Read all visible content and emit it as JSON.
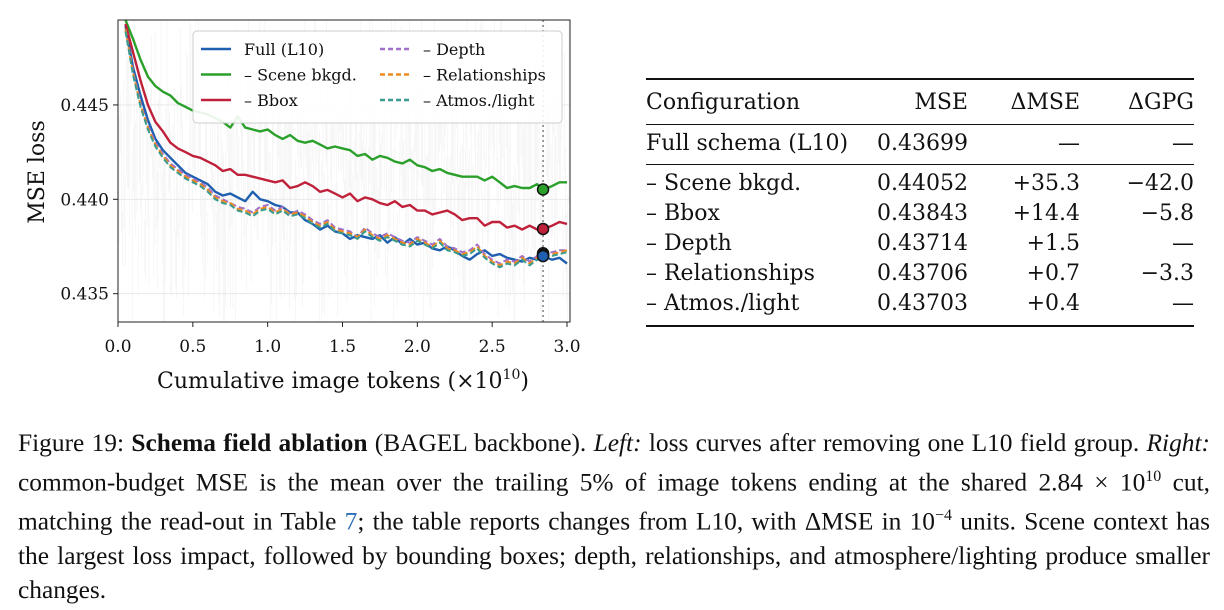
{
  "chart_data": {
    "type": "line",
    "title": "",
    "xlabel": "Cumulative image tokens (×10",
    "xlabel_sup": "10",
    "xlabel_end": ")",
    "ylabel": "MSE loss",
    "xlim": [
      0.0,
      3.02
    ],
    "ylim": [
      0.4335,
      0.4495
    ],
    "xticks": [
      0.0,
      0.5,
      1.0,
      1.5,
      2.0,
      2.5,
      3.0
    ],
    "xtick_labels": [
      "0.0",
      "0.5",
      "1.0",
      "1.5",
      "2.0",
      "2.5",
      "3.0"
    ],
    "yticks": [
      0.435,
      0.44,
      0.445
    ],
    "ytick_labels": [
      "0.435",
      "0.440",
      "0.445"
    ],
    "cutoff_x": 2.84,
    "legend_position": "top-right",
    "series": [
      {
        "name": "Full (L10)",
        "color": "#1f5fb0",
        "style": "solid",
        "x": [
          0.05,
          0.1,
          0.15,
          0.2,
          0.25,
          0.3,
          0.35,
          0.4,
          0.45,
          0.5,
          0.55,
          0.6,
          0.65,
          0.7,
          0.75,
          0.8,
          0.85,
          0.9,
          0.95,
          1.0,
          1.05,
          1.1,
          1.15,
          1.2,
          1.25,
          1.3,
          1.35,
          1.4,
          1.45,
          1.5,
          1.55,
          1.6,
          1.65,
          1.7,
          1.75,
          1.8,
          1.85,
          1.9,
          1.95,
          2.0,
          2.05,
          2.1,
          2.15,
          2.2,
          2.25,
          2.3,
          2.35,
          2.4,
          2.45,
          2.5,
          2.55,
          2.6,
          2.65,
          2.7,
          2.75,
          2.8,
          2.84,
          2.9,
          2.95,
          3.0
        ],
        "y": [
          0.4492,
          0.447,
          0.4455,
          0.4442,
          0.4432,
          0.4426,
          0.4422,
          0.4418,
          0.4414,
          0.4412,
          0.441,
          0.4408,
          0.4404,
          0.4402,
          0.4403,
          0.4401,
          0.4399,
          0.4404,
          0.44,
          0.4399,
          0.4397,
          0.4396,
          0.4393,
          0.4393,
          0.4389,
          0.4387,
          0.4384,
          0.4386,
          0.4383,
          0.4382,
          0.4379,
          0.4381,
          0.438,
          0.4379,
          0.4381,
          0.4377,
          0.438,
          0.4376,
          0.4379,
          0.4376,
          0.4377,
          0.4374,
          0.4373,
          0.4375,
          0.4373,
          0.437,
          0.4368,
          0.4371,
          0.4373,
          0.437,
          0.4371,
          0.4369,
          0.4368,
          0.4367,
          0.4369,
          0.4368,
          0.43699,
          0.4368,
          0.4369,
          0.4366
        ]
      },
      {
        "name": "– Scene bkgd.",
        "color": "#2aa02b",
        "style": "solid",
        "x": [
          0.05,
          0.1,
          0.15,
          0.2,
          0.25,
          0.3,
          0.35,
          0.4,
          0.45,
          0.5,
          0.55,
          0.6,
          0.65,
          0.7,
          0.75,
          0.8,
          0.85,
          0.9,
          0.95,
          1.0,
          1.05,
          1.1,
          1.15,
          1.2,
          1.25,
          1.3,
          1.35,
          1.4,
          1.45,
          1.5,
          1.55,
          1.6,
          1.65,
          1.7,
          1.75,
          1.8,
          1.85,
          1.9,
          1.95,
          2.0,
          2.05,
          2.1,
          2.15,
          2.2,
          2.25,
          2.3,
          2.35,
          2.4,
          2.45,
          2.5,
          2.55,
          2.6,
          2.65,
          2.7,
          2.75,
          2.8,
          2.84,
          2.9,
          2.95,
          3.0
        ],
        "y": [
          0.4495,
          0.4485,
          0.4474,
          0.4465,
          0.446,
          0.4457,
          0.4455,
          0.4451,
          0.4449,
          0.4447,
          0.4446,
          0.4445,
          0.4443,
          0.4441,
          0.4438,
          0.4444,
          0.4438,
          0.4437,
          0.4436,
          0.4437,
          0.4434,
          0.4432,
          0.4434,
          0.4431,
          0.443,
          0.4431,
          0.4429,
          0.4427,
          0.4428,
          0.4427,
          0.4426,
          0.4423,
          0.4424,
          0.4421,
          0.4423,
          0.4422,
          0.442,
          0.4419,
          0.4421,
          0.4418,
          0.4417,
          0.4415,
          0.4416,
          0.4414,
          0.4413,
          0.4412,
          0.4412,
          0.4412,
          0.441,
          0.4412,
          0.4409,
          0.4406,
          0.4407,
          0.4406,
          0.4406,
          0.4408,
          0.44052,
          0.4407,
          0.4409,
          0.4409
        ]
      },
      {
        "name": "– Bbox",
        "color": "#c0213a",
        "style": "solid",
        "x": [
          0.05,
          0.1,
          0.15,
          0.2,
          0.25,
          0.3,
          0.35,
          0.4,
          0.45,
          0.5,
          0.55,
          0.6,
          0.65,
          0.7,
          0.75,
          0.8,
          0.85,
          0.9,
          0.95,
          1.0,
          1.05,
          1.1,
          1.15,
          1.2,
          1.25,
          1.3,
          1.35,
          1.4,
          1.45,
          1.5,
          1.55,
          1.6,
          1.65,
          1.7,
          1.75,
          1.8,
          1.85,
          1.9,
          1.95,
          2.0,
          2.05,
          2.1,
          2.15,
          2.2,
          2.25,
          2.3,
          2.35,
          2.4,
          2.45,
          2.5,
          2.55,
          2.6,
          2.65,
          2.7,
          2.75,
          2.8,
          2.84,
          2.9,
          2.95,
          3.0
        ],
        "y": [
          0.4493,
          0.4478,
          0.4463,
          0.445,
          0.4441,
          0.4436,
          0.443,
          0.4427,
          0.4425,
          0.4423,
          0.4422,
          0.442,
          0.4418,
          0.4415,
          0.4416,
          0.4413,
          0.4413,
          0.4412,
          0.4411,
          0.441,
          0.4409,
          0.441,
          0.4406,
          0.4407,
          0.4409,
          0.4407,
          0.4404,
          0.4405,
          0.4403,
          0.4401,
          0.4403,
          0.4399,
          0.4401,
          0.44,
          0.4398,
          0.4397,
          0.4399,
          0.4396,
          0.4397,
          0.4394,
          0.4394,
          0.4392,
          0.4393,
          0.4394,
          0.4392,
          0.4389,
          0.439,
          0.439,
          0.4386,
          0.4388,
          0.4388,
          0.4385,
          0.4386,
          0.4384,
          0.4386,
          0.4384,
          0.43843,
          0.4386,
          0.4388,
          0.4387
        ]
      },
      {
        "name": "– Depth",
        "color": "#a270c9",
        "style": "dashed",
        "x": [
          0.05,
          0.1,
          0.15,
          0.2,
          0.25,
          0.3,
          0.35,
          0.4,
          0.45,
          0.5,
          0.55,
          0.6,
          0.65,
          0.7,
          0.75,
          0.8,
          0.85,
          0.9,
          0.95,
          1.0,
          1.05,
          1.1,
          1.15,
          1.2,
          1.25,
          1.3,
          1.35,
          1.4,
          1.45,
          1.5,
          1.55,
          1.6,
          1.65,
          1.7,
          1.75,
          1.8,
          1.85,
          1.9,
          1.95,
          2.0,
          2.05,
          2.1,
          2.15,
          2.2,
          2.25,
          2.3,
          2.35,
          2.4,
          2.45,
          2.5,
          2.55,
          2.6,
          2.65,
          2.7,
          2.75,
          2.8,
          2.84,
          2.9,
          2.95,
          3.0
        ],
        "y": [
          0.449,
          0.4468,
          0.4451,
          0.4439,
          0.443,
          0.4424,
          0.4419,
          0.4416,
          0.4413,
          0.4411,
          0.4409,
          0.4406,
          0.4402,
          0.44,
          0.4398,
          0.4396,
          0.4395,
          0.4393,
          0.4396,
          0.4397,
          0.4394,
          0.4396,
          0.4392,
          0.4394,
          0.4392,
          0.4389,
          0.4387,
          0.4389,
          0.4385,
          0.4384,
          0.4383,
          0.438,
          0.4385,
          0.4382,
          0.438,
          0.4382,
          0.438,
          0.4378,
          0.4377,
          0.438,
          0.4378,
          0.4376,
          0.4379,
          0.4375,
          0.4374,
          0.4372,
          0.4373,
          0.4376,
          0.4371,
          0.4368,
          0.4366,
          0.4368,
          0.4367,
          0.437,
          0.4367,
          0.437,
          0.43714,
          0.4372,
          0.4373,
          0.4373
        ]
      },
      {
        "name": "– Relationships",
        "color": "#f08a1c",
        "style": "dashed",
        "x": [
          0.05,
          0.1,
          0.15,
          0.2,
          0.25,
          0.3,
          0.35,
          0.4,
          0.45,
          0.5,
          0.55,
          0.6,
          0.65,
          0.7,
          0.75,
          0.8,
          0.85,
          0.9,
          0.95,
          1.0,
          1.05,
          1.1,
          1.15,
          1.2,
          1.25,
          1.3,
          1.35,
          1.4,
          1.45,
          1.5,
          1.55,
          1.6,
          1.65,
          1.7,
          1.75,
          1.8,
          1.85,
          1.9,
          1.95,
          2.0,
          2.05,
          2.1,
          2.15,
          2.2,
          2.25,
          2.3,
          2.35,
          2.4,
          2.45,
          2.5,
          2.55,
          2.6,
          2.65,
          2.7,
          2.75,
          2.8,
          2.84,
          2.9,
          2.95,
          3.0
        ],
        "y": [
          0.449,
          0.4467,
          0.445,
          0.4438,
          0.4429,
          0.4423,
          0.4418,
          0.4415,
          0.4412,
          0.441,
          0.4408,
          0.4405,
          0.4401,
          0.4399,
          0.4398,
          0.4395,
          0.4394,
          0.4392,
          0.4395,
          0.4396,
          0.4393,
          0.4395,
          0.4392,
          0.4393,
          0.4391,
          0.4388,
          0.4386,
          0.4388,
          0.4384,
          0.4383,
          0.4382,
          0.438,
          0.4384,
          0.4381,
          0.4379,
          0.4381,
          0.4379,
          0.4377,
          0.4376,
          0.4379,
          0.4377,
          0.4375,
          0.4378,
          0.4374,
          0.4373,
          0.4371,
          0.4372,
          0.4375,
          0.437,
          0.4367,
          0.4365,
          0.4367,
          0.4366,
          0.4369,
          0.4366,
          0.4369,
          0.43706,
          0.4371,
          0.4372,
          0.4373
        ]
      },
      {
        "name": "– Atmos./light",
        "color": "#3a9c8f",
        "style": "dashed",
        "x": [
          0.05,
          0.1,
          0.15,
          0.2,
          0.25,
          0.3,
          0.35,
          0.4,
          0.45,
          0.5,
          0.55,
          0.6,
          0.65,
          0.7,
          0.75,
          0.8,
          0.85,
          0.9,
          0.95,
          1.0,
          1.05,
          1.1,
          1.15,
          1.2,
          1.25,
          1.3,
          1.35,
          1.4,
          1.45,
          1.5,
          1.55,
          1.6,
          1.65,
          1.7,
          1.75,
          1.8,
          1.85,
          1.9,
          1.95,
          2.0,
          2.05,
          2.1,
          2.15,
          2.2,
          2.25,
          2.3,
          2.35,
          2.4,
          2.45,
          2.5,
          2.55,
          2.6,
          2.65,
          2.7,
          2.75,
          2.8,
          2.84,
          2.9,
          2.95,
          3.0
        ],
        "y": [
          0.4489,
          0.4466,
          0.4449,
          0.4437,
          0.4428,
          0.4422,
          0.4417,
          0.4414,
          0.4411,
          0.4409,
          0.4407,
          0.4404,
          0.44,
          0.4398,
          0.4397,
          0.4394,
          0.4393,
          0.4391,
          0.4394,
          0.4395,
          0.4392,
          0.4394,
          0.4391,
          0.4392,
          0.439,
          0.4387,
          0.4385,
          0.4387,
          0.4383,
          0.4382,
          0.4381,
          0.4379,
          0.4383,
          0.438,
          0.4378,
          0.438,
          0.4378,
          0.4376,
          0.4375,
          0.4378,
          0.4376,
          0.4374,
          0.4377,
          0.4373,
          0.4372,
          0.437,
          0.4371,
          0.4374,
          0.4369,
          0.4366,
          0.4364,
          0.4366,
          0.4365,
          0.4368,
          0.4365,
          0.4368,
          0.43703,
          0.437,
          0.4371,
          0.4372
        ]
      }
    ],
    "markers": [
      {
        "x": 2.84,
        "y": 0.44052,
        "color": "#2aa02b"
      },
      {
        "x": 2.84,
        "y": 0.43843,
        "color": "#c0213a"
      },
      {
        "x": 2.84,
        "y": 0.43714,
        "color": "#a270c9"
      },
      {
        "x": 2.84,
        "y": 0.43706,
        "color": "#f08a1c"
      },
      {
        "x": 2.84,
        "y": 0.43703,
        "color": "#3a9c8f"
      },
      {
        "x": 2.84,
        "y": 0.43699,
        "color": "#1f5fb0"
      }
    ]
  },
  "table": {
    "headers": [
      "Configuration",
      "MSE",
      "ΔMSE",
      "ΔGPG"
    ],
    "baseline": [
      "Full schema (L10)",
      "0.43699",
      "—",
      "—"
    ],
    "rows": [
      [
        "– Scene bkgd.",
        "0.44052",
        "+35.3",
        "−42.0"
      ],
      [
        "– Bbox",
        "0.43843",
        "+14.4",
        "−5.8"
      ],
      [
        "– Depth",
        "0.43714",
        "+1.5",
        "—"
      ],
      [
        "– Relationships",
        "0.43706",
        "+0.7",
        "−3.3"
      ],
      [
        "– Atmos./light",
        "0.43703",
        "+0.4",
        "—"
      ]
    ]
  },
  "caption": {
    "label": "Figure 19:",
    "bold": "Schema field ablation",
    "t1": " (BAGEL backbone). ",
    "left": "Left:",
    "t2": " loss curves after removing one L10 field group. ",
    "right": "Right:",
    "t3": " common-budget MSE is the mean over the trailing 5% of image tokens ending at the shared 2.84 × 10",
    "sup1": "10",
    "t4": " cut, matching the read-out in Table ",
    "ref": "7",
    "t5": "; the table reports changes from L10, with ΔMSE in 10",
    "sup2": "−4",
    "t6": " units. Scene context has the largest loss impact, followed by bounding boxes; depth, relationships, and atmosphere/lighting produce smaller changes."
  }
}
